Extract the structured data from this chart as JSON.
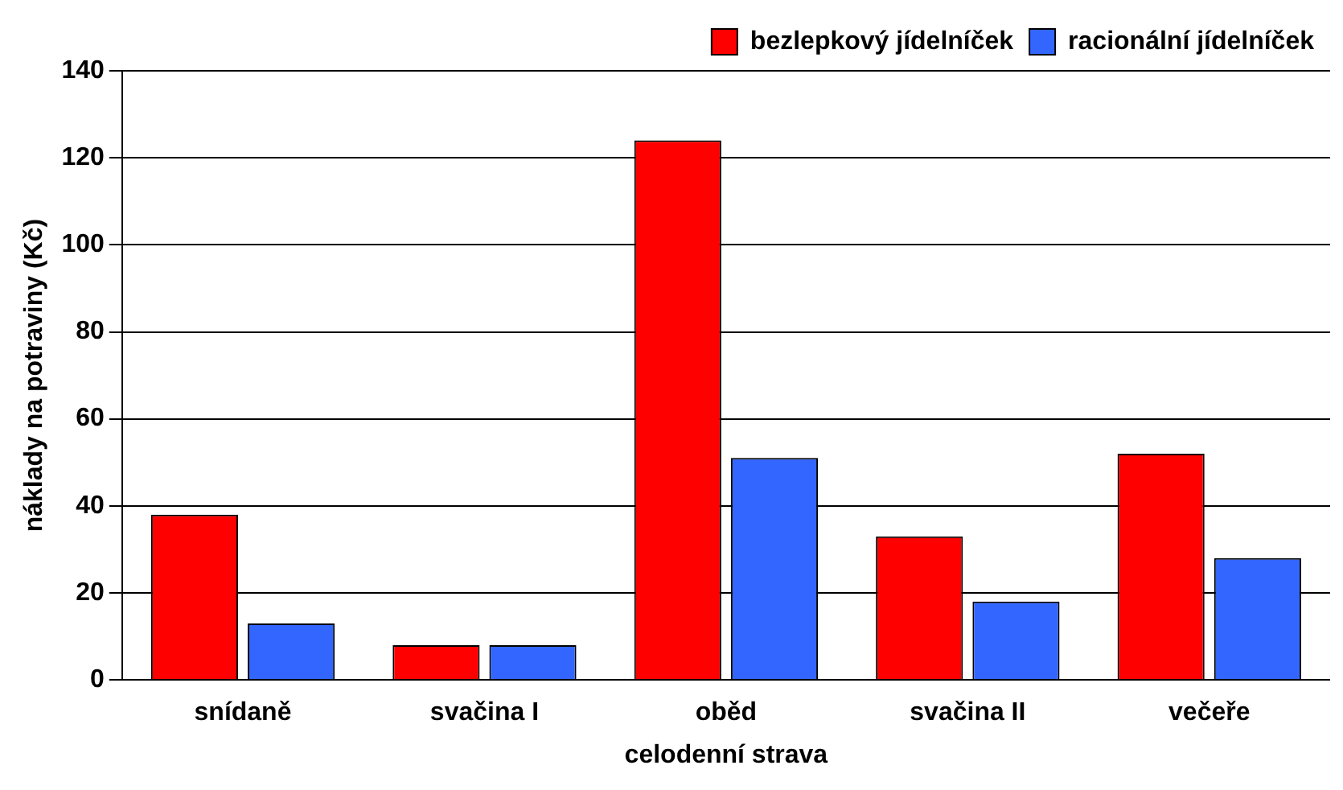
{
  "chart_data": {
    "type": "bar",
    "xlabel": "celodenní strava",
    "ylabel": "náklady na potraviny (Kč)",
    "categories": [
      "snídaně",
      "svačina I",
      "oběd",
      "svačina II",
      "večeře"
    ],
    "series": [
      {
        "name": "bezlepkový jídelníček",
        "color": "#ff0000",
        "values": [
          38,
          8,
          124,
          33,
          52
        ]
      },
      {
        "name": "racionální jídelníček",
        "color": "#3366ff",
        "values": [
          13,
          8,
          51,
          18,
          28
        ]
      }
    ],
    "ylim": [
      0,
      140
    ],
    "yticks": [
      0,
      20,
      40,
      60,
      80,
      100,
      120,
      140
    ],
    "grid": "y",
    "legend": "top right"
  }
}
